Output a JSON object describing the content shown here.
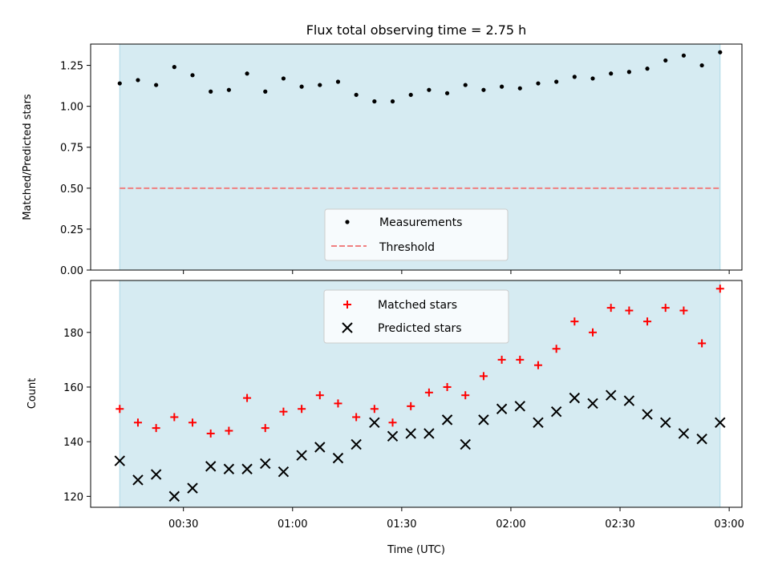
{
  "chart_data": {
    "type": "scatter",
    "title": "Flux total observing time = 2.75 h",
    "xlabel": "Time (UTC)",
    "x_tick_labels": [
      "00:30",
      "01:00",
      "01:30",
      "02:00",
      "02:30",
      "03:00"
    ],
    "x_tick_minutes": [
      30,
      60,
      90,
      120,
      150,
      180
    ],
    "xlim_minutes": [
      4.5,
      183.5
    ],
    "shaded_interval_minutes": [
      12.5,
      177.5
    ],
    "colors": {
      "shade": "#add8e6",
      "measurements": "#000000",
      "threshold": "#f08080",
      "matched": "#ff0000",
      "predicted": "#000000"
    },
    "panels": [
      {
        "id": "ratio",
        "ylabel": "Matched/Predicted stars",
        "ylim": [
          0,
          1.38
        ],
        "y_ticks": [
          0,
          0.25,
          0.5,
          0.75,
          1.0,
          1.25
        ],
        "y_tick_labels": [
          "0.00",
          "0.25",
          "0.50",
          "0.75",
          "1.00",
          "1.25"
        ],
        "legend": {
          "placement": "lower center",
          "entries": [
            "Measurements",
            "Threshold"
          ]
        },
        "threshold": 0.5,
        "series": [
          {
            "name": "Measurements",
            "marker": "dot",
            "x": [
              12.5,
              17.5,
              22.5,
              27.5,
              32.5,
              37.5,
              42.5,
              47.5,
              52.5,
              57.5,
              62.5,
              67.5,
              72.5,
              77.5,
              82.5,
              87.5,
              92.5,
              97.5,
              102.5,
              107.5,
              112.5,
              117.5,
              122.5,
              127.5,
              132.5,
              137.5,
              142.5,
              147.5,
              152.5,
              157.5,
              162.5,
              167.5,
              172.5,
              177.5
            ],
            "y": [
              1.14,
              1.16,
              1.13,
              1.24,
              1.19,
              1.09,
              1.1,
              1.2,
              1.09,
              1.17,
              1.12,
              1.13,
              1.15,
              1.07,
              1.03,
              1.03,
              1.07,
              1.1,
              1.08,
              1.13,
              1.1,
              1.12,
              1.11,
              1.14,
              1.15,
              1.18,
              1.17,
              1.2,
              1.21,
              1.23,
              1.28,
              1.31,
              1.25,
              1.33
            ]
          }
        ]
      },
      {
        "id": "count",
        "ylabel": "Count",
        "ylim": [
          116,
          199
        ],
        "y_ticks": [
          120,
          140,
          160,
          180
        ],
        "y_tick_labels": [
          "120",
          "140",
          "160",
          "180"
        ],
        "legend": {
          "placement": "upper center",
          "entries": [
            "Matched stars",
            "Predicted stars"
          ]
        },
        "series": [
          {
            "name": "Matched stars",
            "marker": "plus",
            "x": [
              12.5,
              17.5,
              22.5,
              27.5,
              32.5,
              37.5,
              42.5,
              47.5,
              52.5,
              57.5,
              62.5,
              67.5,
              72.5,
              77.5,
              82.5,
              87.5,
              92.5,
              97.5,
              102.5,
              107.5,
              112.5,
              117.5,
              122.5,
              127.5,
              132.5,
              137.5,
              142.5,
              147.5,
              152.5,
              157.5,
              162.5,
              167.5,
              172.5,
              177.5
            ],
            "y": [
              152,
              147,
              145,
              149,
              147,
              143,
              144,
              156,
              145,
              151,
              152,
              157,
              154,
              149,
              152,
              147,
              153,
              158,
              160,
              157,
              164,
              170,
              170,
              168,
              174,
              184,
              180,
              189,
              188,
              184,
              189,
              188,
              176,
              196
            ]
          },
          {
            "name": "Predicted stars",
            "marker": "x",
            "x": [
              12.5,
              17.5,
              22.5,
              27.5,
              32.5,
              37.5,
              42.5,
              47.5,
              52.5,
              57.5,
              62.5,
              67.5,
              72.5,
              77.5,
              82.5,
              87.5,
              92.5,
              97.5,
              102.5,
              107.5,
              112.5,
              117.5,
              122.5,
              127.5,
              132.5,
              137.5,
              142.5,
              147.5,
              152.5,
              157.5,
              162.5,
              167.5,
              172.5,
              177.5
            ],
            "y": [
              133,
              126,
              128,
              120,
              123,
              131,
              130,
              130,
              132,
              129,
              135,
              138,
              134,
              139,
              147,
              142,
              143,
              143,
              148,
              139,
              148,
              152,
              153,
              147,
              151,
              156,
              154,
              157,
              155,
              150,
              147,
              143,
              141,
              147
            ]
          }
        ]
      }
    ]
  }
}
